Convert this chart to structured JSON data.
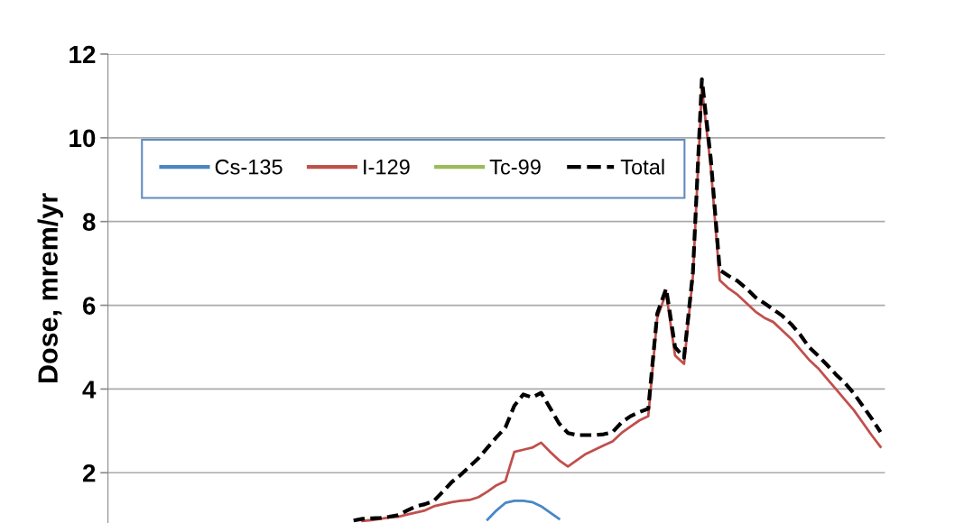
{
  "chart_data": {
    "type": "line",
    "ylabel": "Dose, mrem/yr",
    "categories": [
      null,
      null,
      null,
      null,
      null,
      null,
      null,
      null,
      null,
      null,
      null,
      null,
      null,
      null,
      null,
      null,
      null,
      null,
      null,
      null,
      null,
      null,
      null,
      null,
      null,
      null,
      null,
      null,
      null,
      null,
      null,
      null,
      null,
      null,
      null,
      null,
      null,
      null,
      null,
      null,
      null,
      null,
      null,
      null,
      null,
      null,
      null,
      null,
      null,
      null,
      null,
      null,
      null,
      null,
      null,
      null,
      null,
      null,
      null,
      null,
      null,
      null,
      null,
      null,
      null,
      null,
      null,
      null,
      null,
      null,
      null,
      null,
      null,
      null,
      null,
      null,
      null,
      null,
      null,
      null,
      null,
      null,
      null,
      null,
      null,
      null,
      null
    ],
    "series": [
      {
        "name": "Cs-135",
        "color": "#4a86c6",
        "line_style": "solid",
        "values": [
          null,
          null,
          null,
          null,
          null,
          null,
          null,
          null,
          null,
          null,
          null,
          null,
          null,
          null,
          null,
          null,
          null,
          null,
          null,
          null,
          null,
          null,
          null,
          null,
          null,
          null,
          null,
          null,
          null,
          null,
          null,
          null,
          null,
          null,
          null,
          null,
          null,
          null,
          null,
          null,
          null,
          null,
          0.88,
          1.1,
          1.28,
          1.33,
          1.33,
          1.3,
          1.2,
          1.05,
          0.9,
          null,
          null,
          null,
          null,
          null,
          null,
          null,
          null,
          null,
          null,
          null,
          null,
          null,
          null,
          null,
          null,
          null,
          null,
          null,
          null,
          null,
          null,
          null,
          null,
          null,
          null,
          null,
          null,
          null,
          null,
          null,
          null,
          null,
          null,
          null,
          null
        ]
      },
      {
        "name": "I-129",
        "color": "#c0504d",
        "line_style": "solid",
        "values": [
          null,
          null,
          null,
          null,
          null,
          null,
          null,
          null,
          null,
          null,
          null,
          null,
          null,
          null,
          null,
          null,
          null,
          null,
          null,
          null,
          null,
          null,
          null,
          null,
          null,
          null,
          null,
          null,
          0.85,
          0.87,
          0.9,
          0.93,
          0.95,
          1.0,
          1.05,
          1.1,
          1.2,
          1.25,
          1.3,
          1.33,
          1.35,
          1.42,
          1.55,
          1.7,
          1.8,
          2.5,
          2.55,
          2.6,
          2.72,
          2.5,
          2.3,
          2.15,
          2.3,
          2.45,
          2.55,
          2.65,
          2.75,
          2.95,
          3.1,
          3.25,
          3.35,
          5.7,
          6.3,
          4.8,
          4.6,
          6.7,
          11.2,
          9.3,
          6.6,
          6.4,
          6.25,
          6.05,
          5.85,
          5.7,
          5.6,
          5.4,
          5.2,
          4.95,
          4.7,
          4.5,
          4.25,
          4.0,
          3.75,
          3.5,
          3.2,
          2.9,
          2.62
        ]
      },
      {
        "name": "Tc-99",
        "color": "#9bbb59",
        "line_style": "solid",
        "values": [
          null,
          null,
          null,
          null,
          null,
          null,
          null,
          null,
          null,
          null,
          null,
          null,
          null,
          null,
          null,
          null,
          null,
          null,
          null,
          null,
          null,
          null,
          null,
          null,
          null,
          null,
          null,
          null,
          null,
          null,
          null,
          null,
          null,
          null,
          null,
          null,
          null,
          null,
          null,
          null,
          null,
          null,
          null,
          null,
          null,
          null,
          null,
          null,
          null,
          null,
          null,
          null,
          null,
          null,
          null,
          null,
          null,
          null,
          null,
          null,
          null,
          null,
          null,
          null,
          null,
          null,
          null,
          null,
          null,
          null,
          null,
          null,
          null,
          null,
          null,
          null,
          null,
          null,
          null,
          null,
          null,
          null,
          null,
          null,
          null,
          null,
          null
        ]
      },
      {
        "name": "Total",
        "color": "#000000",
        "line_style": "dashed",
        "values": [
          null,
          null,
          null,
          null,
          null,
          null,
          null,
          null,
          null,
          null,
          null,
          null,
          null,
          null,
          null,
          null,
          null,
          null,
          null,
          null,
          null,
          null,
          null,
          null,
          null,
          null,
          null,
          0.86,
          0.9,
          0.91,
          0.92,
          0.95,
          0.99,
          1.1,
          1.2,
          1.25,
          1.33,
          1.55,
          1.78,
          1.95,
          2.15,
          2.35,
          2.6,
          2.85,
          3.08,
          3.6,
          3.87,
          3.8,
          3.91,
          3.55,
          3.18,
          2.95,
          2.9,
          2.9,
          2.9,
          2.92,
          2.97,
          3.2,
          3.35,
          3.45,
          3.53,
          5.8,
          6.4,
          5.0,
          4.75,
          6.8,
          11.4,
          9.5,
          6.84,
          6.7,
          6.58,
          6.4,
          6.19,
          6.05,
          5.9,
          5.75,
          5.55,
          5.3,
          5.0,
          4.8,
          4.58,
          4.35,
          4.15,
          3.9,
          3.6,
          3.3,
          2.97
        ]
      }
    ],
    "ylim": [
      0.8,
      12
    ],
    "yticks": [
      2,
      4,
      6,
      8,
      10,
      12
    ],
    "grid": "y",
    "legend": "top",
    "tick_labels": "y"
  }
}
